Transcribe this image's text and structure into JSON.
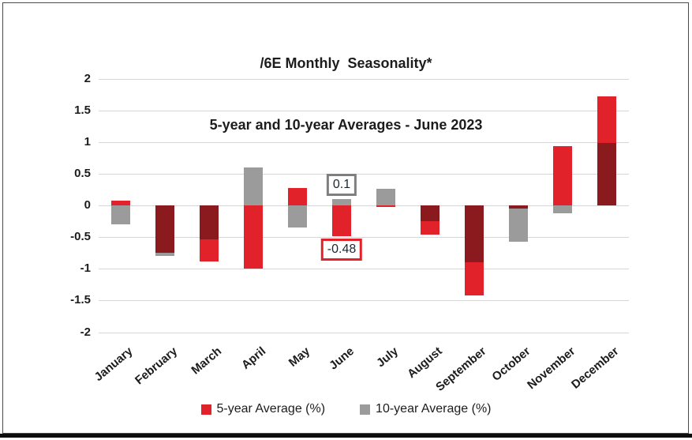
{
  "chart_data": {
    "type": "bar",
    "title_line1": "/6E Monthly  Seasonality*",
    "title_line2": "5-year and 10-year Averages - June 2023",
    "categories": [
      "January",
      "February",
      "March",
      "April",
      "May",
      "June",
      "July",
      "August",
      "September",
      "October",
      "November",
      "December"
    ],
    "series": [
      {
        "name": "5-year Average (%)",
        "color": "#E2222B",
        "values": [
          0.08,
          -0.75,
          -0.88,
          -1.0,
          0.27,
          -0.48,
          -0.03,
          -0.46,
          -1.42,
          -0.05,
          0.93,
          1.72
        ]
      },
      {
        "name": "10-year Average (%)",
        "color": "#9B9B9B",
        "values": [
          -0.3,
          -0.8,
          -0.53,
          0.6,
          -0.35,
          0.1,
          0.26,
          -0.25,
          -0.9,
          -0.57,
          -0.13,
          0.98
        ]
      }
    ],
    "overlap_color": "#8A1A1E",
    "ylabel": "",
    "xlabel": "",
    "ylim": [
      -2,
      2
    ],
    "yticks": [
      "2",
      "1.5",
      "1",
      "0.5",
      "0",
      "-0.5",
      "-1",
      "-1.5",
      "-2"
    ],
    "grid": true,
    "legend_position": "bottom",
    "annotations": [
      {
        "text": "0.1",
        "value": 0.1,
        "month_index": 5,
        "placement": "above",
        "border_color": "#7F7F7F"
      },
      {
        "text": "-0.48",
        "value": -0.48,
        "month_index": 5,
        "placement": "below",
        "border_color": "#E2222B"
      }
    ]
  }
}
